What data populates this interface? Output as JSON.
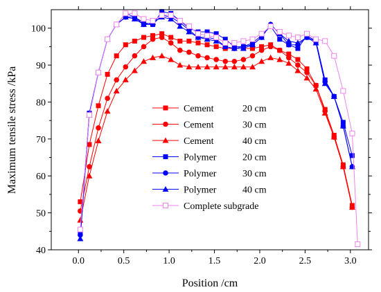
{
  "chart_data": {
    "type": "line",
    "xlabel": "Position /cm",
    "ylabel": "Maximum tensile stress /kPa",
    "xlim": [
      -0.3,
      3.2
    ],
    "ylim": [
      40,
      105
    ],
    "xticks": [
      "0.0",
      "0.5",
      "1.0",
      "1.5",
      "2.0",
      "2.5",
      "3.0"
    ],
    "yticks": [
      "40",
      "50",
      "60",
      "70",
      "80",
      "90",
      "100"
    ],
    "legend_position": "center",
    "series": [
      {
        "name": "Cement",
        "thickness": "20 cm",
        "color": "#ff0000",
        "marker": "square",
        "x": [
          0.02,
          0.12,
          0.22,
          0.32,
          0.42,
          0.52,
          0.62,
          0.72,
          0.82,
          0.92,
          1.02,
          1.12,
          1.22,
          1.32,
          1.42,
          1.52,
          1.62,
          1.72,
          1.82,
          1.92,
          2.02,
          2.12,
          2.22,
          2.32,
          2.42,
          2.52,
          2.62,
          2.72,
          2.82,
          2.92,
          3.02
        ],
        "y": [
          53,
          68.5,
          79,
          87.5,
          92.5,
          95.5,
          96.5,
          97.5,
          98,
          98.5,
          97.5,
          96.5,
          96.5,
          96,
          95.5,
          95,
          94.5,
          94.5,
          94.5,
          94.5,
          95,
          95.5,
          94,
          93,
          91.5,
          89,
          84.5,
          78,
          71,
          63,
          52
        ]
      },
      {
        "name": "Cement",
        "thickness": "30 cm",
        "color": "#ff0000",
        "marker": "circle",
        "x": [
          0.02,
          0.12,
          0.22,
          0.32,
          0.42,
          0.52,
          0.62,
          0.72,
          0.82,
          0.92,
          1.02,
          1.12,
          1.22,
          1.32,
          1.42,
          1.52,
          1.62,
          1.72,
          1.82,
          1.92,
          2.02,
          2.12,
          2.22,
          2.32,
          2.42,
          2.52,
          2.62,
          2.72,
          2.82,
          2.92,
          3.02
        ],
        "y": [
          50.5,
          62.5,
          73,
          81,
          86,
          89.5,
          92.5,
          95,
          97,
          97.5,
          96,
          94,
          93.5,
          92.5,
          92,
          91.5,
          91,
          91,
          91.5,
          92.5,
          94,
          95,
          94,
          92,
          90,
          88,
          84.5,
          77.5,
          70.5,
          62.5,
          51.5
        ]
      },
      {
        "name": "Cement",
        "thickness": "40 cm",
        "color": "#ff0000",
        "marker": "triangle",
        "x": [
          0.02,
          0.12,
          0.22,
          0.32,
          0.42,
          0.52,
          0.62,
          0.72,
          0.82,
          0.92,
          1.02,
          1.12,
          1.22,
          1.32,
          1.42,
          1.52,
          1.62,
          1.72,
          1.82,
          1.92,
          2.02,
          2.12,
          2.22,
          2.32,
          2.42,
          2.52,
          2.62,
          2.72,
          2.82,
          2.92,
          3.02
        ],
        "y": [
          48,
          60,
          69.5,
          77.5,
          83,
          86,
          88.5,
          91,
          92,
          92.5,
          91.5,
          90,
          89.5,
          89.5,
          89.5,
          89.5,
          89.5,
          89.5,
          89.5,
          89.5,
          91,
          92,
          91.5,
          90.5,
          88.5,
          86.5,
          83.5,
          77,
          70.5,
          62.5,
          51.5
        ]
      },
      {
        "name": "Polymer",
        "thickness": "20 cm",
        "color": "#0000ff",
        "marker": "square",
        "x": [
          0.02,
          0.12,
          0.22,
          0.32,
          0.42,
          0.52,
          0.62,
          0.72,
          0.82,
          0.92,
          1.02,
          1.12,
          1.22,
          1.32,
          1.42,
          1.52,
          1.62,
          1.72,
          1.82,
          1.92,
          2.02,
          2.12,
          2.22,
          2.32,
          2.42,
          2.52,
          2.62,
          2.72,
          2.82,
          2.92,
          3.02
        ],
        "y": [
          44.5,
          77,
          88,
          97,
          101,
          104,
          103,
          101.5,
          101,
          104.5,
          104,
          102,
          100,
          99,
          99,
          98.5,
          97,
          95,
          95,
          96,
          98,
          100.5,
          97,
          95.5,
          94.5,
          98,
          96.5,
          86,
          81.5,
          74.5,
          65.5
        ]
      },
      {
        "name": "Polymer",
        "thickness": "30 cm",
        "color": "#0000ff",
        "marker": "circle",
        "x": [
          0.02,
          0.12,
          0.22,
          0.32,
          0.42,
          0.52,
          0.62,
          0.72,
          0.82,
          0.92,
          1.02,
          1.12,
          1.22,
          1.32,
          1.42,
          1.52,
          1.62,
          1.72,
          1.82,
          1.92,
          2.02,
          2.12,
          2.22,
          2.32,
          2.42,
          2.52,
          2.62,
          2.72,
          2.82,
          2.92,
          3.02
        ],
        "y": [
          44,
          77,
          88,
          97,
          101,
          103,
          103,
          101,
          101,
          103.5,
          103,
          101.5,
          99.5,
          97.5,
          97.5,
          97,
          95,
          94.5,
          95,
          95.5,
          97.5,
          101,
          98.5,
          95.5,
          95.5,
          97.5,
          96.5,
          85.5,
          81.5,
          73.5,
          62.5
        ]
      },
      {
        "name": "Polymer",
        "thickness": "40 cm",
        "color": "#0000ff",
        "marker": "triangle",
        "x": [
          0.02,
          0.12,
          0.22,
          0.32,
          0.42,
          0.52,
          0.62,
          0.72,
          0.82,
          0.92,
          1.02,
          1.12,
          1.22,
          1.32,
          1.42,
          1.52,
          1.62,
          1.72,
          1.82,
          1.92,
          2.02,
          2.12,
          2.22,
          2.32,
          2.42,
          2.52,
          2.62,
          2.72,
          2.82,
          2.92,
          3.02
        ],
        "y": [
          43,
          76.5,
          88,
          97,
          101,
          103,
          102.5,
          101,
          101.5,
          103,
          102.5,
          100.5,
          99,
          97.5,
          97,
          96.5,
          95,
          94.5,
          94.5,
          95.5,
          97.5,
          101,
          98.5,
          96.5,
          96,
          97.5,
          96,
          85,
          81.5,
          73.5,
          62.5
        ]
      },
      {
        "name": "Complete subgrade",
        "thickness": "",
        "color": "#ee82ee",
        "marker": "open-square",
        "x": [
          0.02,
          0.12,
          0.22,
          0.32,
          0.42,
          0.52,
          0.62,
          0.72,
          0.82,
          0.92,
          1.02,
          1.12,
          1.22,
          1.32,
          1.42,
          1.52,
          1.62,
          1.72,
          1.82,
          1.92,
          2.02,
          2.12,
          2.22,
          2.32,
          2.42,
          2.52,
          2.62,
          2.72,
          2.82,
          2.92,
          3.02,
          3.08
        ],
        "y": [
          45.5,
          76.5,
          88,
          97,
          101,
          104,
          104,
          102.5,
          102,
          103.5,
          103.5,
          102,
          100.5,
          98.5,
          98,
          97.5,
          96,
          96,
          96.5,
          97,
          98.5,
          100.5,
          99,
          98,
          97.5,
          98.5,
          97,
          96.5,
          92.5,
          83,
          71.5,
          41.5
        ]
      }
    ]
  }
}
